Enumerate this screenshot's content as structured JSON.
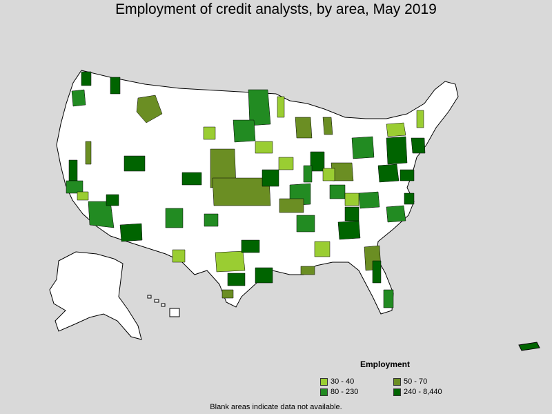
{
  "title": "Employment of credit analysts, by area, May 2019",
  "legend": {
    "title": "Employment",
    "items": [
      {
        "label": "30 - 40",
        "color": "#9acd32"
      },
      {
        "label": "50 - 70",
        "color": "#6b8e23"
      },
      {
        "label": "80 - 230",
        "color": "#228b22"
      },
      {
        "label": "240 - 8,440",
        "color": "#006400"
      }
    ]
  },
  "footnote": "Blank areas indicate data not available.",
  "colors": {
    "background": "#d9d9d9",
    "land": "#ffffff",
    "border": "#000000"
  }
}
